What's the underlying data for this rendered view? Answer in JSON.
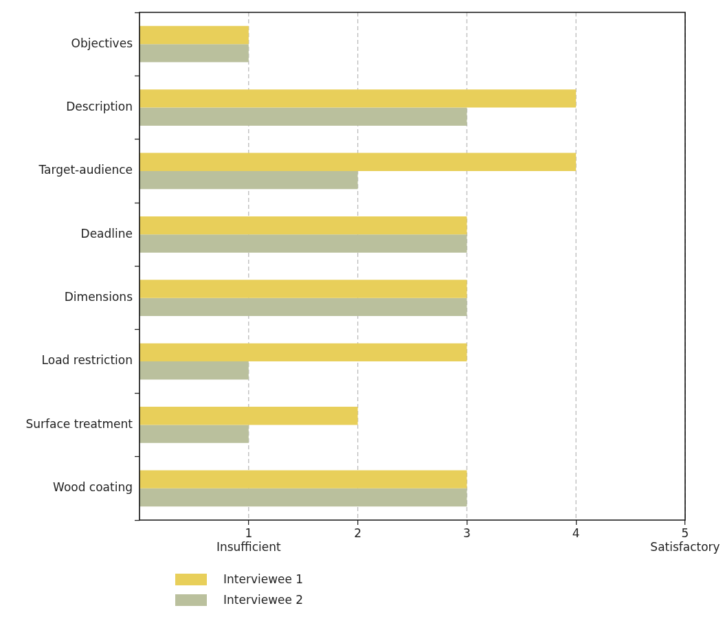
{
  "chart_data": {
    "type": "bar",
    "orientation": "horizontal",
    "categories": [
      "Objectives",
      "Description",
      "Target-audience",
      "Deadline",
      "Dimensions",
      "Load restriction",
      "Surface treatment",
      "Wood coating"
    ],
    "series": [
      {
        "name": "Interviewee 1",
        "color": "#e8cf5a",
        "values": [
          1,
          4,
          4,
          3,
          3,
          3,
          2,
          3
        ]
      },
      {
        "name": "Interviewee 2",
        "color": "#bac09d",
        "values": [
          1,
          3,
          2,
          3,
          3,
          1,
          1,
          3
        ]
      }
    ],
    "xlim": [
      0,
      5
    ],
    "xticks": [
      {
        "value": 1,
        "label": "1\nInsufficient"
      },
      2,
      3,
      4,
      {
        "value": 5,
        "label": "5\nSatisfactory"
      }
    ],
    "grid": "x",
    "legend": "bottom"
  }
}
